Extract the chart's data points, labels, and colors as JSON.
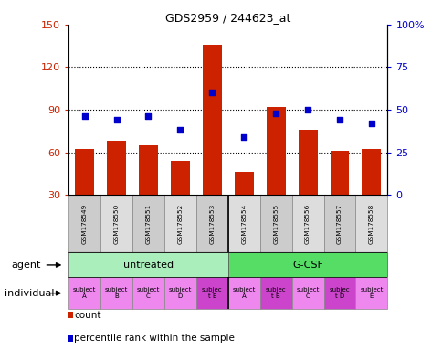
{
  "title": "GDS2959 / 244623_at",
  "samples": [
    "GSM178549",
    "GSM178550",
    "GSM178551",
    "GSM178552",
    "GSM178553",
    "GSM178554",
    "GSM178555",
    "GSM178556",
    "GSM178557",
    "GSM178558"
  ],
  "counts": [
    62,
    68,
    65,
    54,
    136,
    46,
    92,
    76,
    61,
    62
  ],
  "percentile_ranks": [
    46,
    44,
    46,
    38,
    60,
    34,
    48,
    50,
    44,
    42
  ],
  "ylim_left": [
    30,
    150
  ],
  "ylim_right": [
    0,
    100
  ],
  "yticks_left": [
    30,
    60,
    90,
    120,
    150
  ],
  "yticks_right": [
    0,
    25,
    50,
    75,
    100
  ],
  "bar_color": "#cc2200",
  "dot_color": "#0000cc",
  "agent_groups": [
    {
      "label": "untreated",
      "start": 0,
      "end": 5,
      "color": "#aaeebb"
    },
    {
      "label": "G-CSF",
      "start": 5,
      "end": 10,
      "color": "#55dd66"
    }
  ],
  "individual_labels": [
    "subject\nA",
    "subject\nB",
    "subject\nC",
    "subject\nD",
    "subjec\nt E",
    "subject\nA",
    "subjec\nt B",
    "subject\nC",
    "subjec\nt D",
    "subject\nE"
  ],
  "individual_highlight": [
    4,
    6,
    8
  ],
  "individual_color_normal": "#ee88ee",
  "individual_color_highlight": "#cc44cc",
  "legend_items": [
    {
      "color": "#cc2200",
      "label": "count"
    },
    {
      "color": "#0000cc",
      "label": "percentile rank within the sample"
    }
  ],
  "tick_label_color_left": "#cc2200",
  "tick_label_color_right": "#0000cc",
  "gridline_values": [
    60,
    90,
    120
  ],
  "sample_box_colors": [
    "#cccccc",
    "#dddddd"
  ]
}
